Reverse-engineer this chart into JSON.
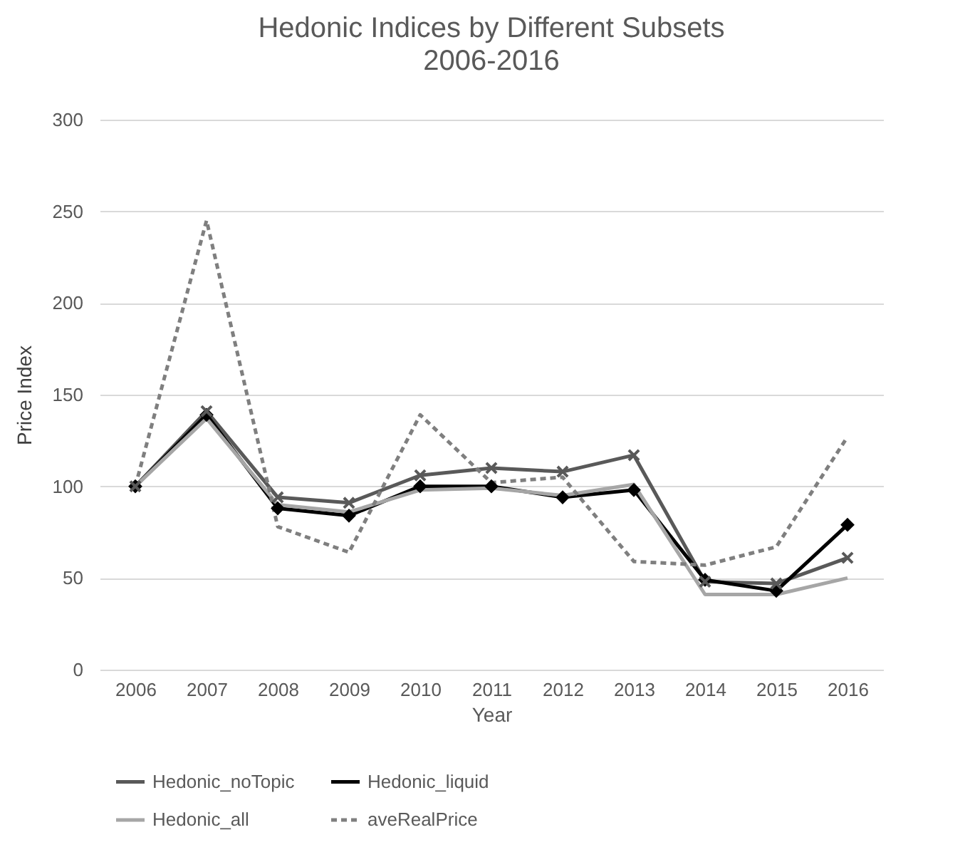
{
  "chart_data": {
    "type": "line",
    "title": "Hedonic Indices by Different Subsets",
    "subtitle": "2006-2016",
    "xlabel": "Year",
    "ylabel": "Price Index",
    "categories": [
      "2006",
      "2007",
      "2008",
      "2009",
      "2010",
      "2011",
      "2012",
      "2013",
      "2014",
      "2015",
      "2016"
    ],
    "series": [
      {
        "name": "Hedonic_noTopic",
        "color": "#595959",
        "marker": "cross",
        "line_style": "solid",
        "values": [
          100,
          141,
          94,
          91,
          106,
          110,
          108,
          117,
          48,
          47,
          61
        ]
      },
      {
        "name": "Hedonic_liquid",
        "color": "#000000",
        "marker": "diamond",
        "line_style": "solid",
        "values": [
          100,
          139,
          88,
          84,
          100,
          100,
          94,
          98,
          49,
          43,
          79
        ]
      },
      {
        "name": "Hedonic_all",
        "color": "#a6a6a6",
        "marker": "none",
        "line_style": "solid",
        "values": [
          100,
          137,
          90,
          86,
          98,
          99,
          95,
          101,
          41,
          41,
          50
        ]
      },
      {
        "name": "aveRealPrice",
        "color": "#7f7f7f",
        "marker": "none",
        "line_style": "dashed",
        "values": [
          100,
          245,
          78,
          64,
          139,
          102,
          105,
          59,
          57,
          67,
          127
        ]
      }
    ],
    "ylim": [
      0,
      300
    ],
    "yticks": [
      0,
      50,
      100,
      150,
      200,
      250,
      300
    ],
    "grid": "y",
    "legend": "bottom"
  }
}
